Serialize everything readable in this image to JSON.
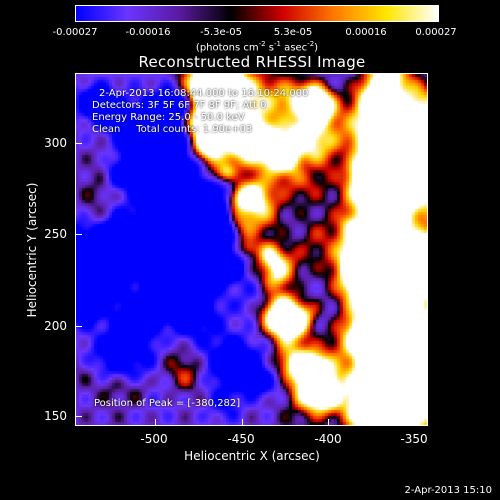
{
  "colorbar": {
    "ticks": [
      "-0.00027",
      "-0.00016",
      "-5.3e-05",
      "5.3e-05",
      "0.00016",
      "0.00027"
    ],
    "units_prefix": "(photons cm",
    "units_exp1": "-2",
    "units_mid": " s",
    "units_exp2": "-1",
    "units_mid2": " asec",
    "units_exp3": "-2",
    "units_suffix": ")",
    "colors": [
      "#0000ff",
      "#6a35ff",
      "#5a1aa0",
      "#000000",
      "#d00000",
      "#ff7a00",
      "#ffe600",
      "#ffffff"
    ]
  },
  "title": "Reconstructed RHESSI Image",
  "info": {
    "time_range": "2-Apr-2013 16:08:44.000 to 16:10:24.000",
    "detectors": "Detectors: 3F 5F 6F 7F 8F 9F; Att 0",
    "energy": "Energy Range: 25.0 - 50.0 keV",
    "clean": "Clean     Total counts: 1.90e+03",
    "peak": "Position of Peak = [-380,282]"
  },
  "axes": {
    "xlabel": "Heliocentric X (arcsec)",
    "ylabel": "Heliocentric Y (arcsec)",
    "xticks": [
      "-500",
      "-450",
      "-400",
      "-350"
    ],
    "yticks": [
      "300",
      "250",
      "200",
      "150"
    ]
  },
  "timestamp": "2-Apr-2013 15:10"
}
